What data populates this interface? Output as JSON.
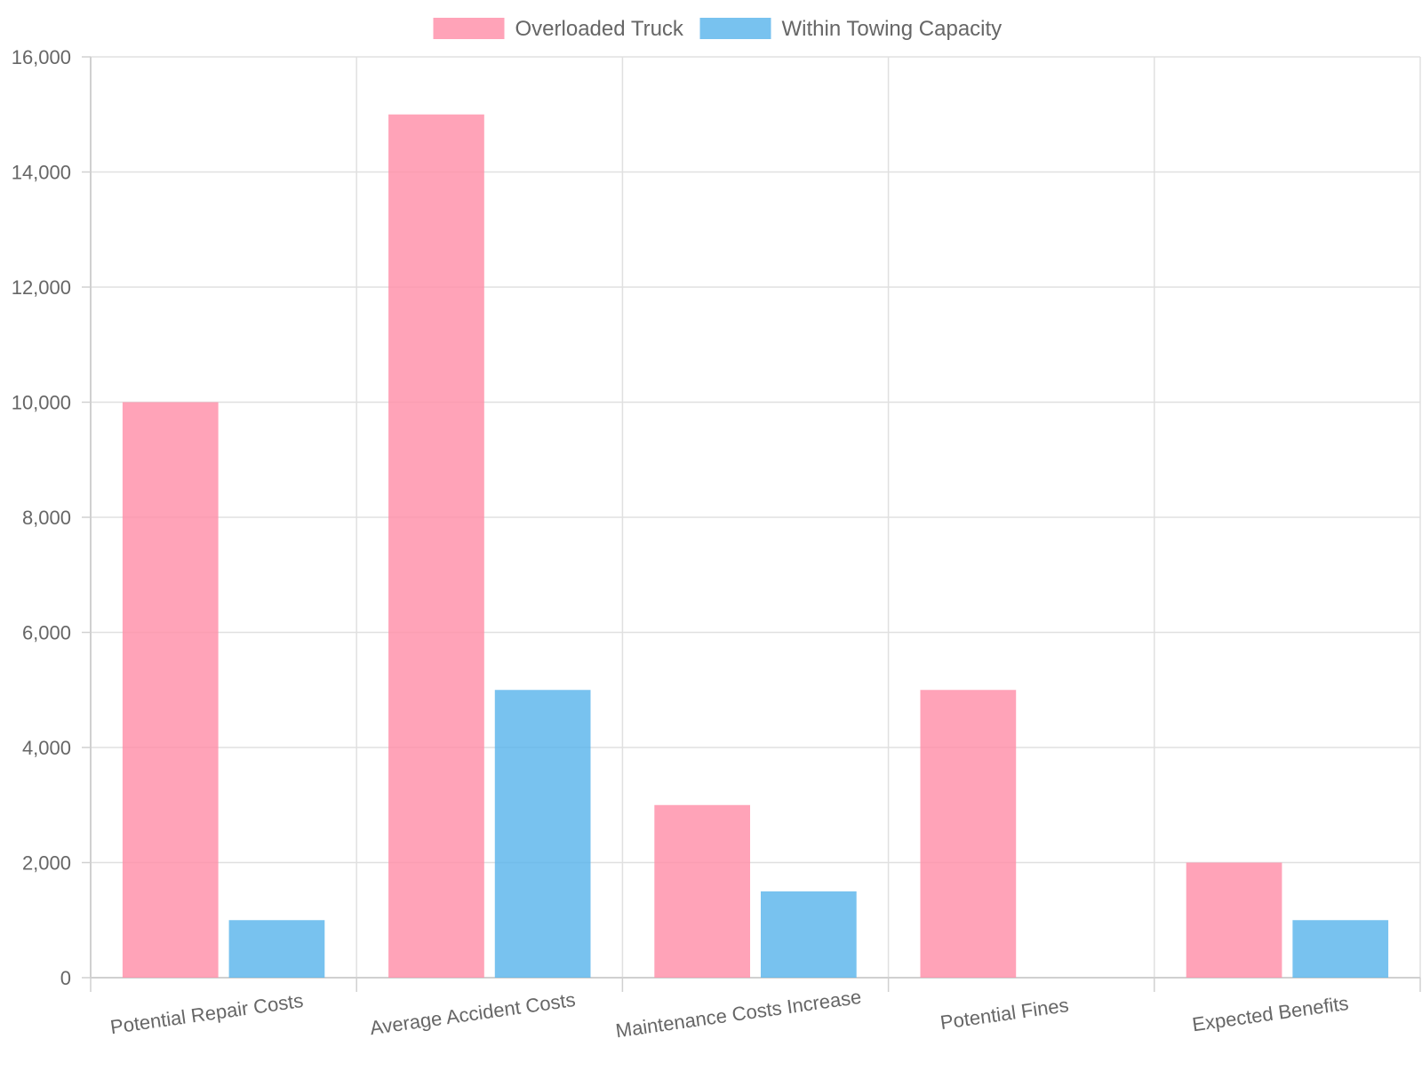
{
  "chart_data": {
    "type": "bar",
    "categories": [
      "Potential Repair Costs",
      "Average Accident Costs",
      "Maintenance Costs Increase",
      "Potential Fines",
      "Expected Benefits"
    ],
    "series": [
      {
        "name": "Overloaded Truck",
        "values": [
          10000,
          15000,
          3000,
          5000,
          2000
        ],
        "color": "#ff8fa8"
      },
      {
        "name": "Within Towing Capacity",
        "values": [
          1000,
          5000,
          1500,
          0,
          1000
        ],
        "color": "#5ab4ec"
      }
    ],
    "ylim": [
      0,
      16000
    ],
    "yticks": [
      "0",
      "2,000",
      "4,000",
      "6,000",
      "8,000",
      "10,000",
      "12,000",
      "14,000",
      "16,000"
    ],
    "grid": true,
    "legend_position": "top-center"
  }
}
